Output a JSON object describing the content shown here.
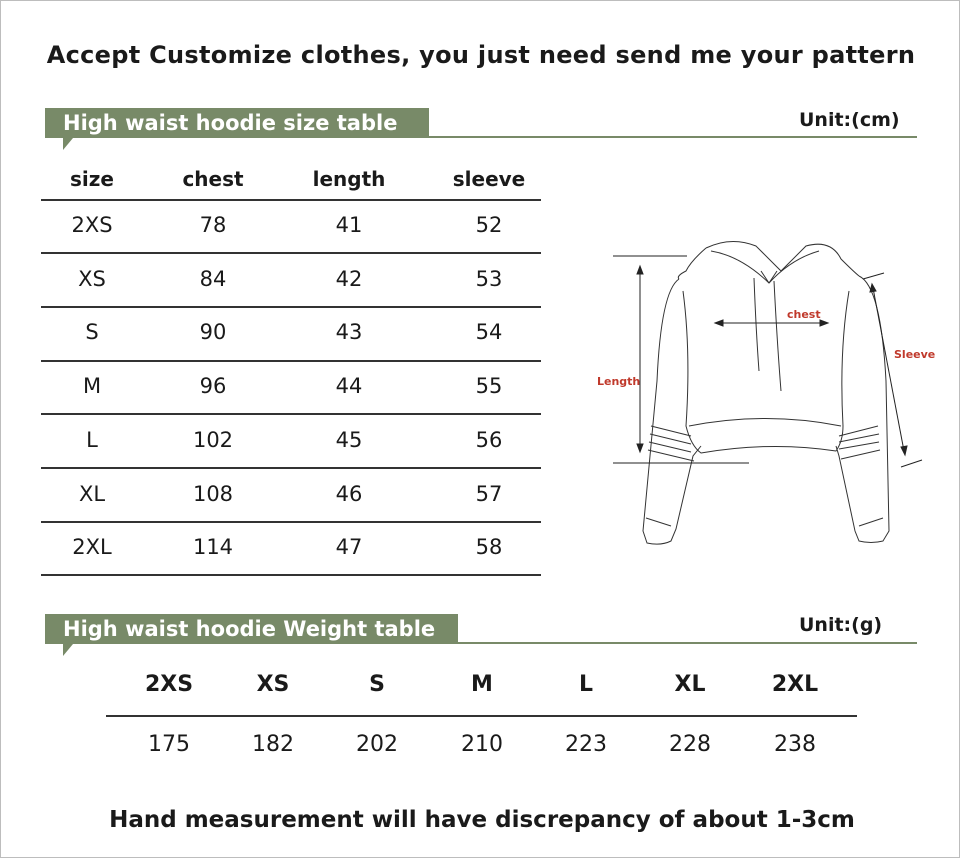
{
  "title": "Accept Customize clothes, you just need send me your pattern",
  "size_table": {
    "banner": "High waist hoodie size table",
    "unit": "Unit:(cm)",
    "headers": [
      "size",
      "chest",
      "length",
      "sleeve"
    ],
    "rows": [
      [
        "2XS",
        "78",
        "41",
        "52"
      ],
      [
        "XS",
        "84",
        "42",
        "53"
      ],
      [
        "S",
        "90",
        "43",
        "54"
      ],
      [
        "M",
        "96",
        "44",
        "55"
      ],
      [
        "L",
        "102",
        "45",
        "56"
      ],
      [
        "XL",
        "108",
        "46",
        "57"
      ],
      [
        "2XL",
        "114",
        "47",
        "58"
      ]
    ]
  },
  "diagram": {
    "chest": "chest",
    "sleeve": "Sleeve",
    "length": "Length",
    "label_color": "#c0392b"
  },
  "weight_table": {
    "banner": "High waist hoodie Weight table",
    "unit": "Unit:(g)",
    "headers": [
      "2XS",
      "XS",
      "S",
      "M",
      "L",
      "XL",
      "2XL"
    ],
    "values": [
      "175",
      "182",
      "202",
      "210",
      "223",
      "228",
      "238"
    ]
  },
  "footer": "Hand measurement will have discrepancy of about 1-3cm",
  "colors": {
    "banner": "#788a68"
  }
}
